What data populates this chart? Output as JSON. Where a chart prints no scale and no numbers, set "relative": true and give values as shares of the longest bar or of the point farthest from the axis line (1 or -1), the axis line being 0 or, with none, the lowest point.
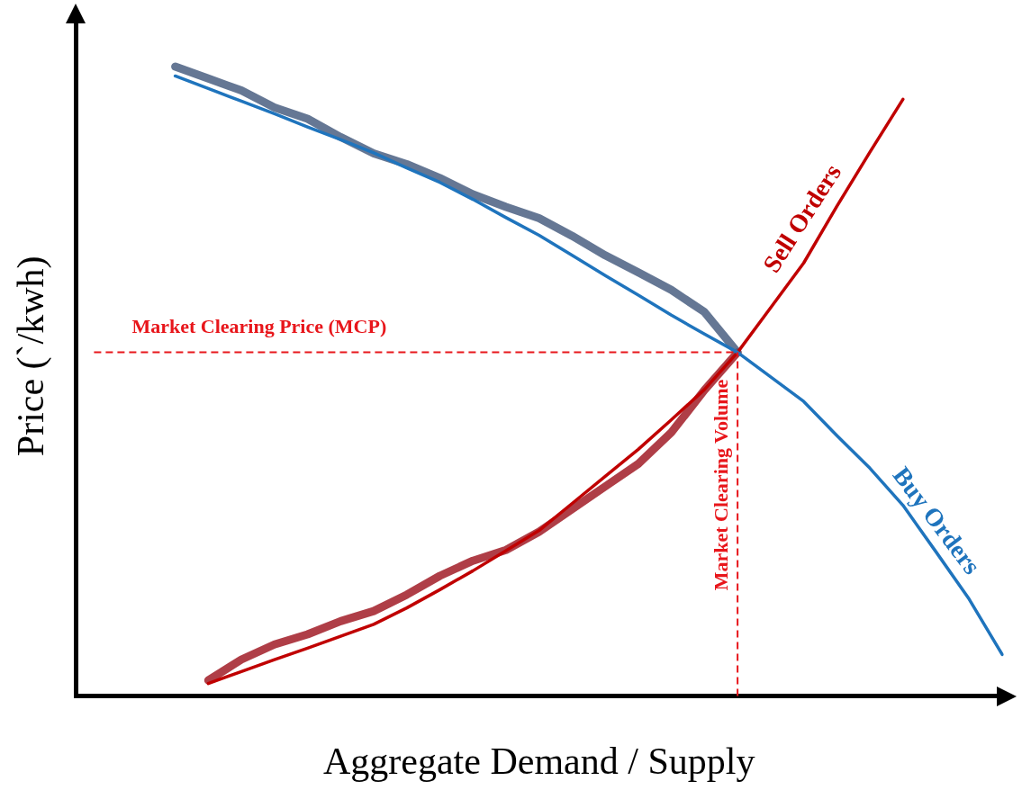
{
  "chart_data": {
    "type": "line",
    "relative": true,
    "xlabel": "Aggregate Demand / Supply",
    "ylabel": "Price (`/kwh)",
    "grid": false,
    "legend": false,
    "tick_labels": false,
    "marker": "none",
    "line_style": "solid",
    "categories": [
      null,
      null,
      null,
      null,
      null,
      null,
      null,
      null,
      null,
      null,
      null,
      null,
      null,
      null,
      null,
      null,
      null,
      null,
      null,
      null,
      null,
      null,
      null,
      null,
      null,
      null,
      null,
      null,
      null
    ],
    "series": [
      {
        "color": "#4d6283",
        "values": [
          null,
          null,
          null,
          1.0,
          0.981,
          0.962,
          0.935,
          0.917,
          0.888,
          0.862,
          0.845,
          0.823,
          0.797,
          0.777,
          0.759,
          0.731,
          0.7,
          0.673,
          0.645,
          0.61,
          0.546,
          null,
          null,
          null,
          null,
          null,
          null,
          null,
          null
        ]
      },
      {
        "color": "#a3202b",
        "values": [
          null,
          null,
          null,
          null,
          0.025,
          0.058,
          0.082,
          0.098,
          0.119,
          0.135,
          0.161,
          0.191,
          0.215,
          0.232,
          0.261,
          0.297,
          0.333,
          0.369,
          0.419,
          0.486,
          0.546,
          null,
          null,
          null,
          null,
          null,
          null,
          null,
          null
        ]
      },
      {
        "name": "Buy Orders",
        "color": "#1f74bd",
        "values": [
          null,
          null,
          null,
          0.985,
          0.965,
          0.945,
          0.925,
          0.904,
          0.884,
          0.863,
          0.839,
          0.816,
          0.789,
          0.76,
          0.732,
          0.7,
          0.668,
          0.637,
          0.605,
          0.575,
          0.546,
          0.507,
          0.468,
          0.414,
          0.362,
          0.303,
          0.229,
          0.154,
          0.066
        ]
      },
      {
        "name": "Sell Orders",
        "color": "#c00000",
        "values": [
          null,
          null,
          null,
          null,
          0.02,
          0.039,
          0.058,
          0.076,
          0.095,
          0.114,
          0.14,
          0.169,
          0.199,
          0.231,
          0.263,
          0.306,
          0.349,
          0.392,
          0.439,
          0.487,
          0.546,
          0.617,
          0.688,
          0.778,
          0.864,
          0.948,
          null,
          null,
          null
        ]
      }
    ],
    "ref_lines": [
      {
        "axis": "y",
        "value": 0.546,
        "label": "Market Clearing Price (MCP)",
        "color": "#e8161b",
        "line_style": "dashed"
      }
    ],
    "annotations": [
      {
        "text": "Market Clearing Volume",
        "y": 0.546
      }
    ]
  }
}
